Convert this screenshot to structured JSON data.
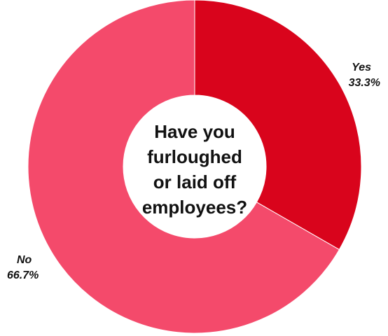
{
  "chart_data": {
    "type": "pie",
    "donut": true,
    "center_text": [
      "Have you",
      "furloughed",
      "or laid off",
      "employees?"
    ],
    "slices": [
      {
        "label": "Yes",
        "value": 33.3,
        "value_label": "33.3%",
        "color": "#d9041c"
      },
      {
        "label": "No",
        "value": 66.7,
        "value_label": "66.7%",
        "color": "#f44a6b"
      }
    ],
    "start_at": "top",
    "direction": "clockwise",
    "legend": "none"
  }
}
